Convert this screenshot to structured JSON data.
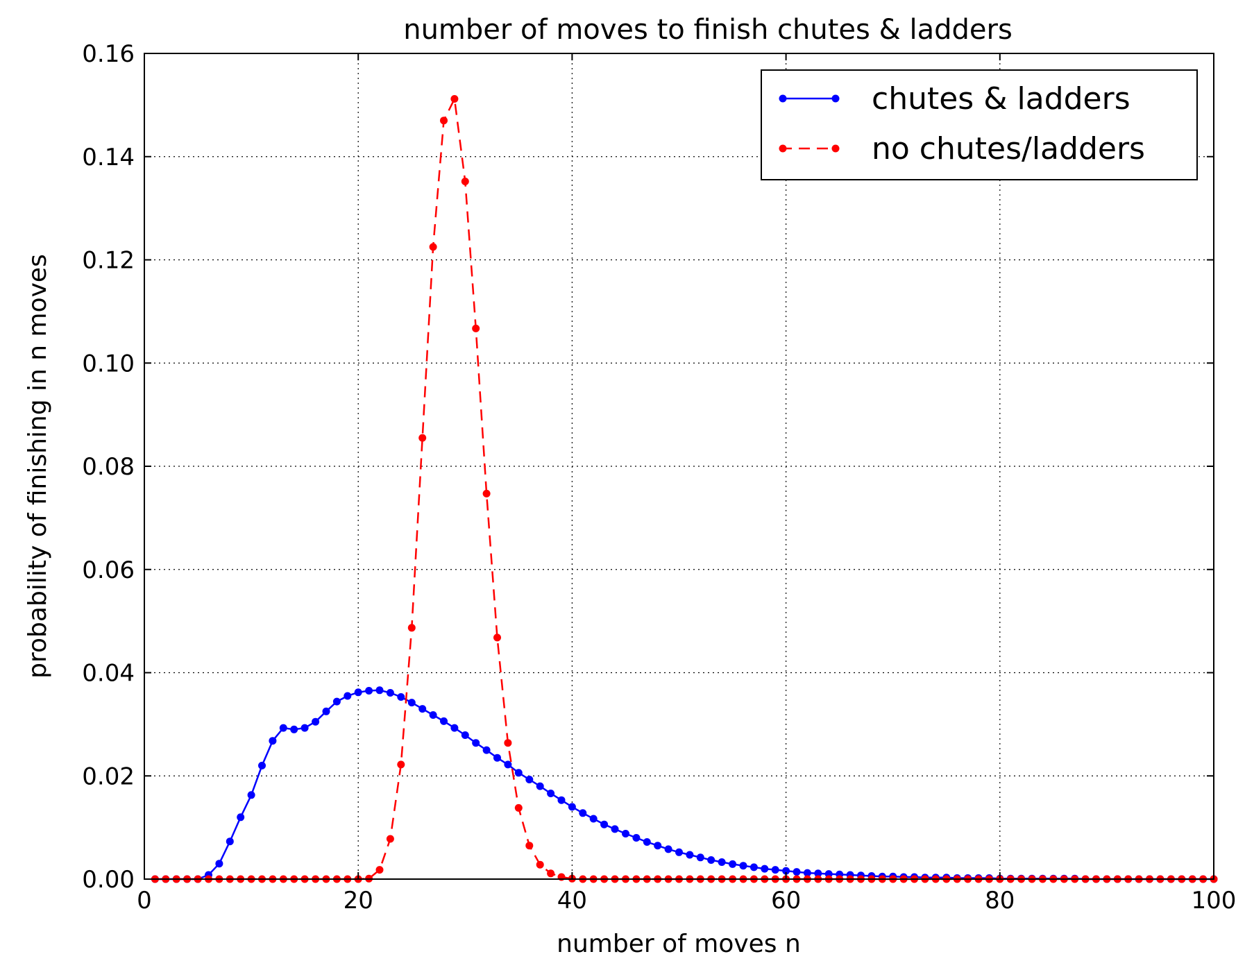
{
  "chart_data": {
    "type": "line",
    "title": "number of moves to finish chutes & ladders",
    "xlabel": "number of moves n",
    "ylabel": "probability of finishing in n moves",
    "xlim": [
      0,
      100
    ],
    "ylim": [
      0,
      0.16
    ],
    "xticks": [
      "0",
      "20",
      "40",
      "60",
      "80",
      "100"
    ],
    "yticks": [
      "0.00",
      "0.02",
      "0.04",
      "0.06",
      "0.08",
      "0.10",
      "0.12",
      "0.14",
      "0.16"
    ],
    "grid": true,
    "legend_position": "top-right",
    "series": [
      {
        "name": "chutes & ladders",
        "color": "#0000ff",
        "line_style": "solid",
        "x": [
          1,
          2,
          3,
          4,
          5,
          6,
          7,
          8,
          9,
          10,
          11,
          12,
          13,
          14,
          15,
          16,
          17,
          18,
          19,
          20,
          21,
          22,
          23,
          24,
          25,
          26,
          27,
          28,
          29,
          30,
          31,
          32,
          33,
          34,
          35,
          36,
          37,
          38,
          39,
          40,
          41,
          42,
          43,
          44,
          45,
          46,
          47,
          48,
          49,
          50,
          51,
          52,
          53,
          54,
          55,
          56,
          57,
          58,
          59,
          60,
          61,
          62,
          63,
          64,
          65,
          66,
          67,
          68,
          69,
          70,
          71,
          72,
          73,
          74,
          75,
          76,
          77,
          78,
          79,
          80,
          81,
          82,
          83,
          84,
          85,
          86,
          87,
          88,
          89,
          90,
          91,
          92,
          93,
          94,
          95,
          96,
          97,
          98,
          99,
          100
        ],
        "y": [
          0,
          0,
          0,
          0,
          0,
          0.0008,
          0.003,
          0.0073,
          0.012,
          0.0163,
          0.022,
          0.0268,
          0.0293,
          0.029,
          0.0293,
          0.0305,
          0.0325,
          0.0344,
          0.0355,
          0.0362,
          0.0365,
          0.0366,
          0.0361,
          0.0353,
          0.0342,
          0.033,
          0.0318,
          0.0306,
          0.0293,
          0.0279,
          0.0264,
          0.025,
          0.0235,
          0.0222,
          0.0206,
          0.0193,
          0.018,
          0.0166,
          0.0153,
          0.014,
          0.0128,
          0.0117,
          0.0106,
          0.0097,
          0.0088,
          0.008,
          0.0072,
          0.0065,
          0.0058,
          0.0052,
          0.0047,
          0.0042,
          0.0037,
          0.0033,
          0.0029,
          0.0026,
          0.0023,
          0.002,
          0.0018,
          0.0016,
          0.0014,
          0.0012,
          0.0011,
          0.001,
          0.0009,
          0.0008,
          0.0007,
          0.0006,
          0.0005,
          0.0005,
          0.0004,
          0.0004,
          0.0003,
          0.0003,
          0.0003,
          0.0002,
          0.0002,
          0.0002,
          0.0002,
          0.0001,
          0.0001,
          0.0001,
          0.0001,
          0.0001,
          0.0001,
          0.0001,
          0.0001,
          0,
          0,
          0,
          0,
          0,
          0,
          0,
          0,
          0,
          0,
          0,
          0,
          0
        ]
      },
      {
        "name": "no chutes/ladders",
        "color": "#ff0000",
        "line_style": "dashed",
        "x": [
          1,
          2,
          3,
          4,
          5,
          6,
          7,
          8,
          9,
          10,
          11,
          12,
          13,
          14,
          15,
          16,
          17,
          18,
          19,
          20,
          21,
          22,
          23,
          24,
          25,
          26,
          27,
          28,
          29,
          30,
          31,
          32,
          33,
          34,
          35,
          36,
          37,
          38,
          39,
          40,
          41,
          42,
          43,
          44,
          45,
          46,
          47,
          48,
          49,
          50,
          51,
          52,
          53,
          54,
          55,
          56,
          57,
          58,
          59,
          60,
          61,
          62,
          63,
          64,
          65,
          66,
          67,
          68,
          69,
          70,
          71,
          72,
          73,
          74,
          75,
          76,
          77,
          78,
          79,
          80,
          81,
          82,
          83,
          84,
          85,
          86,
          87,
          88,
          89,
          90,
          91,
          92,
          93,
          94,
          95,
          96,
          97,
          98,
          99,
          100
        ],
        "y": [
          0,
          0,
          0,
          0,
          0,
          0,
          0,
          0,
          0,
          0,
          0,
          0,
          0,
          0,
          0,
          0,
          0,
          0,
          0,
          0,
          0.0001,
          0.0018,
          0.0078,
          0.0222,
          0.0487,
          0.0855,
          0.1225,
          0.147,
          0.1512,
          0.1352,
          0.1067,
          0.0747,
          0.0468,
          0.0264,
          0.0138,
          0.0065,
          0.0028,
          0.0011,
          0.0004,
          0.0001,
          0,
          0,
          0,
          0,
          0,
          0,
          0,
          0,
          0,
          0,
          0,
          0,
          0,
          0,
          0,
          0,
          0,
          0,
          0,
          0,
          0,
          0,
          0,
          0,
          0,
          0,
          0,
          0,
          0,
          0,
          0,
          0,
          0,
          0,
          0,
          0,
          0,
          0,
          0,
          0,
          0,
          0,
          0,
          0,
          0,
          0,
          0,
          0,
          0,
          0,
          0,
          0,
          0,
          0,
          0,
          0,
          0,
          0,
          0,
          0
        ]
      }
    ]
  }
}
